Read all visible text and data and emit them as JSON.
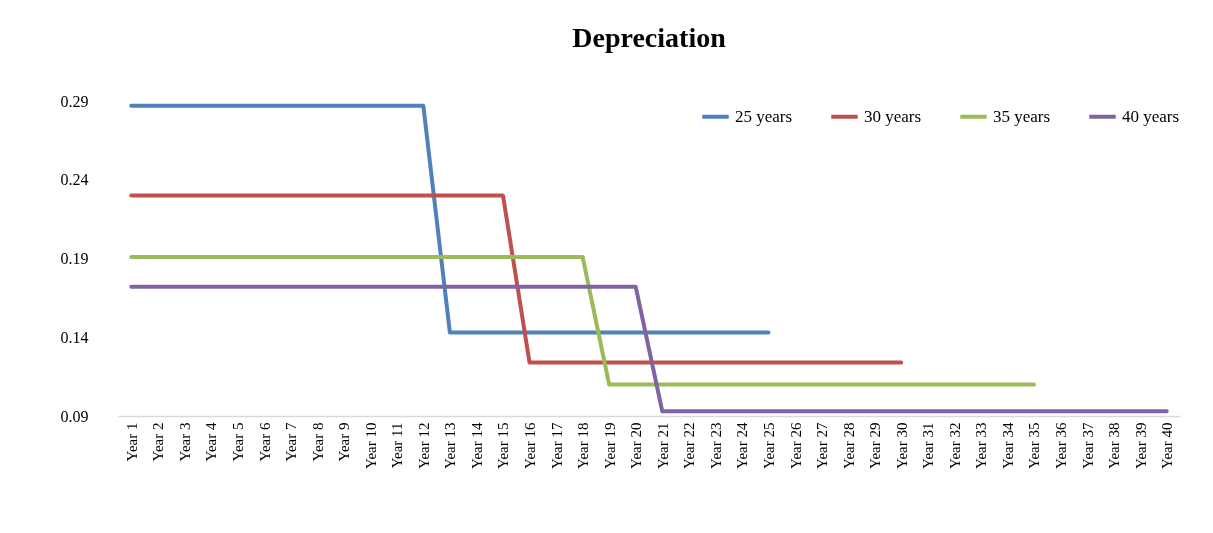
{
  "chart_data": {
    "type": "line",
    "title": "Depreciation",
    "categories": [
      "Year 1",
      "Year 2",
      "Year 3",
      "Year 4",
      "Year 5",
      "Year 6",
      "Year 7",
      "Year 8",
      "Year 9",
      "Year 10",
      "Year 11",
      "Year 12",
      "Year 13",
      "Year 14",
      "Year 15",
      "Year 16",
      "Year 17",
      "Year 18",
      "Year 19",
      "Year 20",
      "Year 21",
      "Year 22",
      "Year 23",
      "Year 24",
      "Year 25",
      "Year 26",
      "Year 27",
      "Year 28",
      "Year 29",
      "Year 30",
      "Year 31",
      "Year 32",
      "Year 33",
      "Year 34",
      "Year 35",
      "Year 36",
      "Year 37",
      "Year 38",
      "Year 39",
      "Year 40"
    ],
    "series": [
      {
        "name": "25 years",
        "color": "#4f81bd",
        "values": [
          0.287,
          0.287,
          0.287,
          0.287,
          0.287,
          0.287,
          0.287,
          0.287,
          0.287,
          0.287,
          0.287,
          0.287,
          0.143,
          0.143,
          0.143,
          0.143,
          0.143,
          0.143,
          0.143,
          0.143,
          0.143,
          0.143,
          0.143,
          0.143,
          0.143,
          null,
          null,
          null,
          null,
          null,
          null,
          null,
          null,
          null,
          null,
          null,
          null,
          null,
          null,
          null
        ]
      },
      {
        "name": "30 years",
        "color": "#c0504d",
        "values": [
          0.23,
          0.23,
          0.23,
          0.23,
          0.23,
          0.23,
          0.23,
          0.23,
          0.23,
          0.23,
          0.23,
          0.23,
          0.23,
          0.23,
          0.23,
          0.124,
          0.124,
          0.124,
          0.124,
          0.124,
          0.124,
          0.124,
          0.124,
          0.124,
          0.124,
          0.124,
          0.124,
          0.124,
          0.124,
          0.124,
          null,
          null,
          null,
          null,
          null,
          null,
          null,
          null,
          null,
          null
        ]
      },
      {
        "name": "35 years",
        "color": "#9bbb59",
        "values": [
          0.191,
          0.191,
          0.191,
          0.191,
          0.191,
          0.191,
          0.191,
          0.191,
          0.191,
          0.191,
          0.191,
          0.191,
          0.191,
          0.191,
          0.191,
          0.191,
          0.191,
          0.191,
          0.11,
          0.11,
          0.11,
          0.11,
          0.11,
          0.11,
          0.11,
          0.11,
          0.11,
          0.11,
          0.11,
          0.11,
          0.11,
          0.11,
          0.11,
          0.11,
          0.11,
          null,
          null,
          null,
          null,
          null
        ]
      },
      {
        "name": "40 years",
        "color": "#8064a2",
        "values": [
          0.172,
          0.172,
          0.172,
          0.172,
          0.172,
          0.172,
          0.172,
          0.172,
          0.172,
          0.172,
          0.172,
          0.172,
          0.172,
          0.172,
          0.172,
          0.172,
          0.172,
          0.172,
          0.172,
          0.172,
          0.093,
          0.093,
          0.093,
          0.093,
          0.093,
          0.093,
          0.093,
          0.093,
          0.093,
          0.093,
          0.093,
          0.093,
          0.093,
          0.093,
          0.093,
          0.093,
          0.093,
          0.093,
          0.093,
          0.093
        ]
      }
    ],
    "ylim": [
      0.09,
      0.29
    ],
    "yticks": [
      0.09,
      0.14,
      0.19,
      0.24,
      0.29
    ],
    "legend": "top right",
    "grid": false
  }
}
